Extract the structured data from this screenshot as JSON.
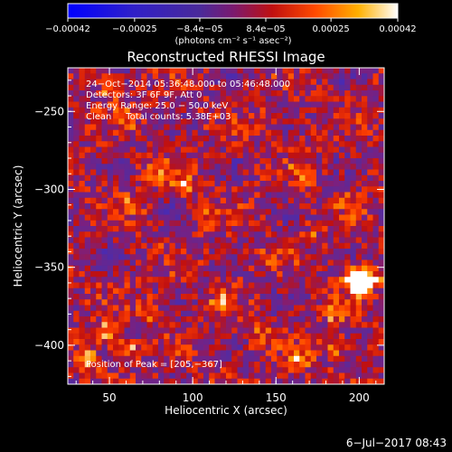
{
  "chart_data": {
    "type": "heatmap",
    "title": "Reconstructed RHESSI Image",
    "xlabel": "Heliocentric X (arcsec)",
    "ylabel": "Heliocentric Y (arcsec)",
    "xlim": [
      25,
      215
    ],
    "ylim": [
      -425,
      -222
    ],
    "x_ticks": [
      50,
      100,
      150,
      200
    ],
    "x_tick_labels": [
      "50",
      "100",
      "150",
      "200"
    ],
    "y_ticks": [
      -250,
      -300,
      -350,
      -400
    ],
    "y_tick_labels": [
      "−250",
      "−300",
      "−350",
      "−400"
    ],
    "colorbar": {
      "min": -0.00042,
      "max": 0.00042,
      "ticks": [
        -0.00042,
        -0.00025,
        -8.4e-05,
        8.4e-05,
        0.00025,
        0.00042
      ],
      "tick_labels": [
        "−0.00042",
        "−0.00025",
        "−8.4e−05",
        "8.4e−05",
        "0.00025",
        "0.00042"
      ],
      "units": "(photons cm⁻² s⁻¹ asec⁻²)",
      "colormap": [
        "#0000ff",
        "#3b2cc8",
        "#5a2a9a",
        "#7a2080",
        "#c01010",
        "#ff4000",
        "#ff9a00",
        "#ffffff"
      ]
    },
    "annotations": [
      "24−Oct−2014 05:36:48.000 to 05:46:48.000",
      "Detectors: 3F 6F 9F, Att 0",
      "Energy Range: 25.0 − 50.0 keV",
      "Clean     Total counts: 5.38E+03"
    ],
    "peak_label": "Position of Peak = [205,−367]",
    "peak": [
      205,
      -367
    ],
    "hotspots": [
      {
        "x": 200,
        "y": -362,
        "value": 0.00042
      },
      {
        "x": 206,
        "y": -358,
        "value": 0.0004
      },
      {
        "x": 196,
        "y": -356,
        "value": 0.00034
      },
      {
        "x": 48,
        "y": -392,
        "value": 0.00036
      },
      {
        "x": 60,
        "y": -403,
        "value": 0.00034
      },
      {
        "x": 38,
        "y": -410,
        "value": 0.0003
      },
      {
        "x": 75,
        "y": -378,
        "value": 0.00026
      },
      {
        "x": 118,
        "y": -372,
        "value": 0.00024
      },
      {
        "x": 140,
        "y": -395,
        "value": 0.00028
      },
      {
        "x": 165,
        "y": -410,
        "value": 0.00026
      },
      {
        "x": 185,
        "y": -400,
        "value": 0.0003
      },
      {
        "x": 185,
        "y": -380,
        "value": 0.00022
      },
      {
        "x": 50,
        "y": -235,
        "value": 0.0003
      },
      {
        "x": 60,
        "y": -255,
        "value": 0.0002
      },
      {
        "x": 78,
        "y": -290,
        "value": 0.00028
      },
      {
        "x": 95,
        "y": -298,
        "value": 0.00025
      },
      {
        "x": 65,
        "y": -310,
        "value": 0.00018
      },
      {
        "x": 110,
        "y": -320,
        "value": 0.00015
      },
      {
        "x": 148,
        "y": -255,
        "value": 0.00016
      },
      {
        "x": 165,
        "y": -290,
        "value": 0.00018
      },
      {
        "x": 172,
        "y": -330,
        "value": 0.00014
      },
      {
        "x": 195,
        "y": -310,
        "value": 0.00012
      },
      {
        "x": 95,
        "y": -355,
        "value": 0.00013
      },
      {
        "x": 140,
        "y": -345,
        "value": 0.00012
      }
    ]
  },
  "footer": {
    "timestamp": "6−Jul−2017 08:43"
  }
}
